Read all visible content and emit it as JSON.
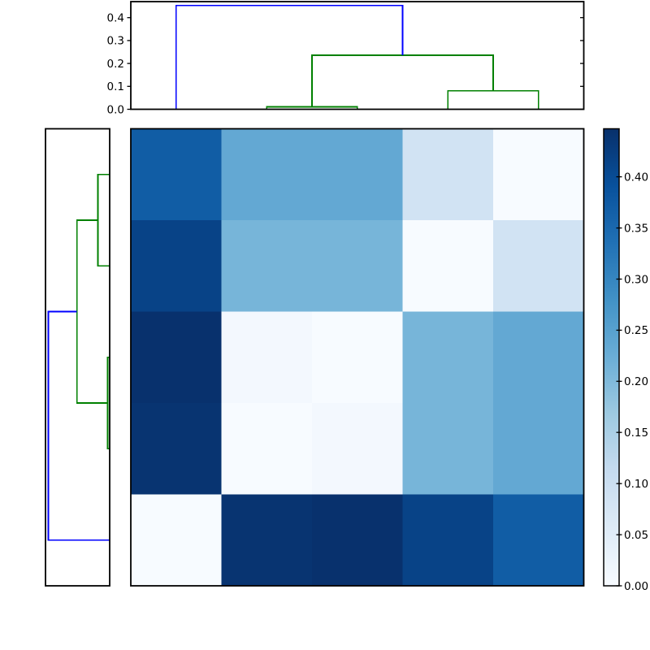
{
  "figure": {
    "background": "#ffffff",
    "frame_color": "#000000",
    "tick_color": "#000000"
  },
  "chart_data": {
    "type": "heatmap",
    "title": "",
    "xlabel": "",
    "ylabel": "",
    "description": "Hierarchical clustering heatmap: 5x5 distance matrix with top and left dendrograms and a vertical colorbar",
    "n_rows": 5,
    "n_cols": 5,
    "matrix": [
      [
        0.37,
        0.235,
        0.235,
        0.085,
        0.0
      ],
      [
        0.415,
        0.21,
        0.21,
        0.0,
        0.085
      ],
      [
        0.445,
        0.01,
        0.0,
        0.21,
        0.235
      ],
      [
        0.44,
        0.0,
        0.01,
        0.21,
        0.235
      ],
      [
        0.0,
        0.44,
        0.445,
        0.415,
        0.37
      ]
    ],
    "vmin": 0.0,
    "vmax": 0.447,
    "colormap_name": "Blues",
    "colormap_stops": [
      {
        "frac": 0.0,
        "color": "#f7fbff"
      },
      {
        "frac": 0.125,
        "color": "#deebf7"
      },
      {
        "frac": 0.25,
        "color": "#c6dbef"
      },
      {
        "frac": 0.375,
        "color": "#9ecae1"
      },
      {
        "frac": 0.5,
        "color": "#6baed6"
      },
      {
        "frac": 0.625,
        "color": "#4292c6"
      },
      {
        "frac": 0.75,
        "color": "#2171b5"
      },
      {
        "frac": 0.875,
        "color": "#08519c"
      },
      {
        "frac": 1.0,
        "color": "#08306b"
      }
    ],
    "link_colors": {
      "blue": "#0000ff",
      "green": "#008000"
    },
    "top_dendrogram": {
      "axis_max": 0.47,
      "tick_values": [
        0.0,
        0.1,
        0.2,
        0.3,
        0.4
      ],
      "tick_labels": [
        "0.0",
        "0.1",
        "0.2",
        "0.3",
        "0.4"
      ],
      "leaf_positions": [
        0.1,
        0.3,
        0.5,
        0.7,
        0.9
      ],
      "links": [
        {
          "p1": 0.3,
          "b1": 0.0,
          "p2": 0.5,
          "b2": 0.0,
          "h": 0.0105,
          "color": "green"
        },
        {
          "p1": 0.7,
          "b1": 0.0,
          "p2": 0.9,
          "b2": 0.0,
          "h": 0.081,
          "color": "green"
        },
        {
          "p1": 0.4,
          "b1": 0.0105,
          "p2": 0.8,
          "b2": 0.081,
          "h": 0.236,
          "color": "green"
        },
        {
          "p1": 0.1,
          "b1": 0.0,
          "p2": 0.6,
          "b2": 0.236,
          "h": 0.453,
          "color": "blue"
        }
      ]
    },
    "left_dendrogram": {
      "axis_max": 0.47,
      "leaf_positions": [
        0.1,
        0.3,
        0.5,
        0.7,
        0.9
      ],
      "links": [
        {
          "p1": 0.1,
          "b1": 0.0,
          "p2": 0.3,
          "b2": 0.0,
          "h": 0.086,
          "color": "green"
        },
        {
          "p1": 0.5,
          "b1": 0.0,
          "p2": 0.7,
          "b2": 0.0,
          "h": 0.014,
          "color": "green"
        },
        {
          "p1": 0.2,
          "b1": 0.086,
          "p2": 0.6,
          "b2": 0.014,
          "h": 0.24,
          "color": "green"
        },
        {
          "p1": 0.4,
          "b1": 0.24,
          "p2": 0.9,
          "b2": 0.0,
          "h": 0.45,
          "color": "blue"
        }
      ]
    },
    "colorbar": {
      "tick_values": [
        0.0,
        0.05,
        0.1,
        0.15,
        0.2,
        0.25,
        0.3,
        0.35,
        0.4
      ],
      "tick_labels": [
        "0.00",
        "0.05",
        "0.10",
        "0.15",
        "0.20",
        "0.25",
        "0.30",
        "0.35",
        "0.40"
      ]
    }
  }
}
